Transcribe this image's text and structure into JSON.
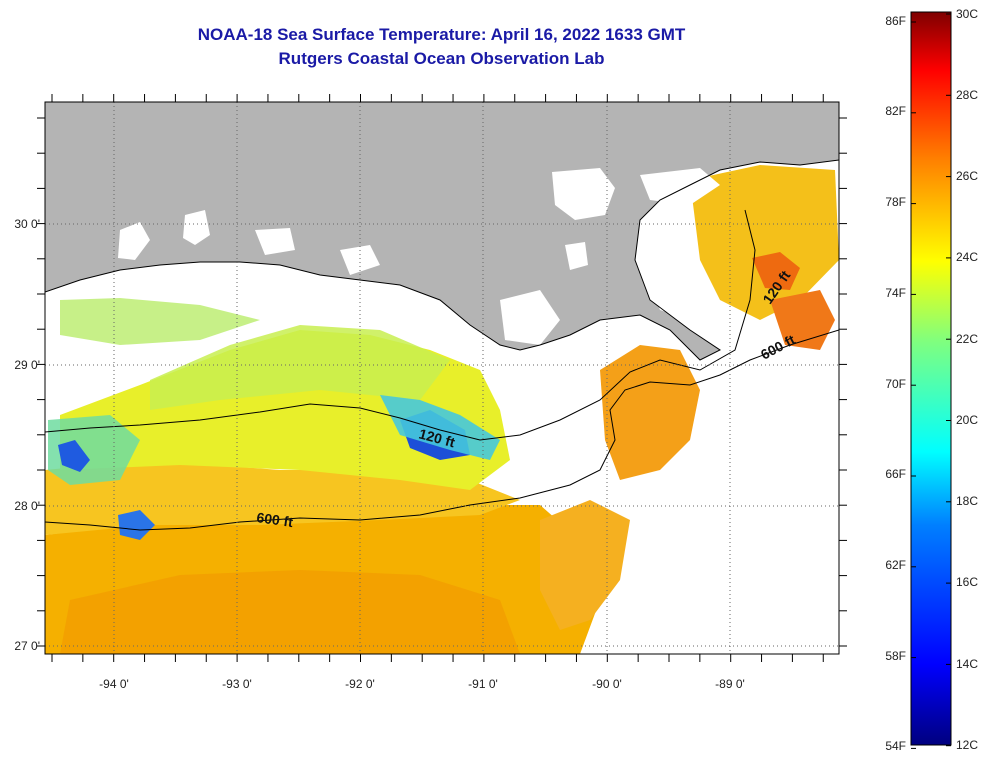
{
  "header": {
    "title": "NOAA-18 Sea Surface Temperature:  April 16, 2022 1633 GMT",
    "subtitle": "Rutgers Coastal Ocean Observation Lab"
  },
  "map": {
    "longitude_labels": [
      "-94 0'",
      "-93 0'",
      "-92 0'",
      "-91 0'",
      "-90 0'",
      "-89 0'"
    ],
    "latitude_labels": [
      "30 0'",
      "29 0'",
      "28 0'",
      "27 0'"
    ],
    "contour_labels": [
      {
        "text": "120 ft"
      },
      {
        "text": "600 ft"
      },
      {
        "text": "120 ft"
      },
      {
        "text": "600 ft"
      }
    ],
    "land_color": "#b4b4b4",
    "cloud_color": "#ffffff"
  },
  "colorbar": {
    "fahrenheit_labels": [
      "86F",
      "82F",
      "78F",
      "74F",
      "70F",
      "66F",
      "62F",
      "58F",
      "54F"
    ],
    "celsius_labels": [
      "30C",
      "28C",
      "26C",
      "24C",
      "22C",
      "20C",
      "18C",
      "16C",
      "14C",
      "12C"
    ],
    "stops": [
      "#00007f",
      "#0000ff",
      "#007fff",
      "#00ffff",
      "#7fff7f",
      "#ffff00",
      "#ff7f00",
      "#ff0000",
      "#7f0000"
    ]
  }
}
